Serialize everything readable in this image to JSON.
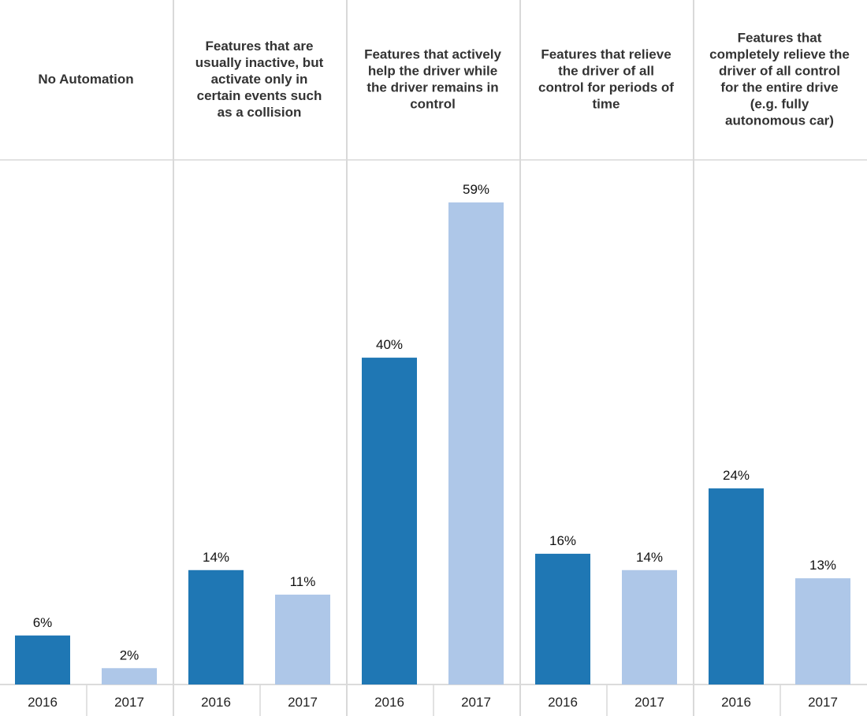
{
  "chart_data": {
    "type": "bar",
    "title": "",
    "xlabel": "",
    "ylabel": "",
    "grid": false,
    "ylim": [
      0,
      65
    ],
    "groups": [
      {
        "header_lines": [
          "No Automation"
        ],
        "categories": [
          "2016",
          "2017"
        ],
        "values": [
          6,
          2
        ],
        "labels": [
          "6%",
          "2%"
        ]
      },
      {
        "header_lines": [
          "Features that are",
          "usually inactive, but",
          "activate only in",
          "certain events such",
          "as a collision"
        ],
        "categories": [
          "2016",
          "2017"
        ],
        "values": [
          14,
          11
        ],
        "labels": [
          "14%",
          "11%"
        ]
      },
      {
        "header_lines": [
          "Features that actively",
          "help the driver while",
          "the driver remains in",
          "control"
        ],
        "categories": [
          "2016",
          "2017"
        ],
        "values": [
          40,
          59
        ],
        "labels": [
          "40%",
          "59%"
        ]
      },
      {
        "header_lines": [
          "Features that relieve",
          "the driver of all",
          "control for periods of",
          "time"
        ],
        "categories": [
          "2016",
          "2017"
        ],
        "values": [
          16,
          14
        ],
        "labels": [
          "16%",
          "14%"
        ]
      },
      {
        "header_lines": [
          "Features that",
          "completely relieve the",
          "driver of all control",
          "for the entire drive",
          "(e.g. fully",
          "autonomous car)"
        ],
        "categories": [
          "2016",
          "2017"
        ],
        "values": [
          24,
          13
        ],
        "labels": [
          "24%",
          "13%"
        ]
      }
    ],
    "colors": {
      "2016": "#1f77b4",
      "2017": "#aec7e8"
    }
  }
}
